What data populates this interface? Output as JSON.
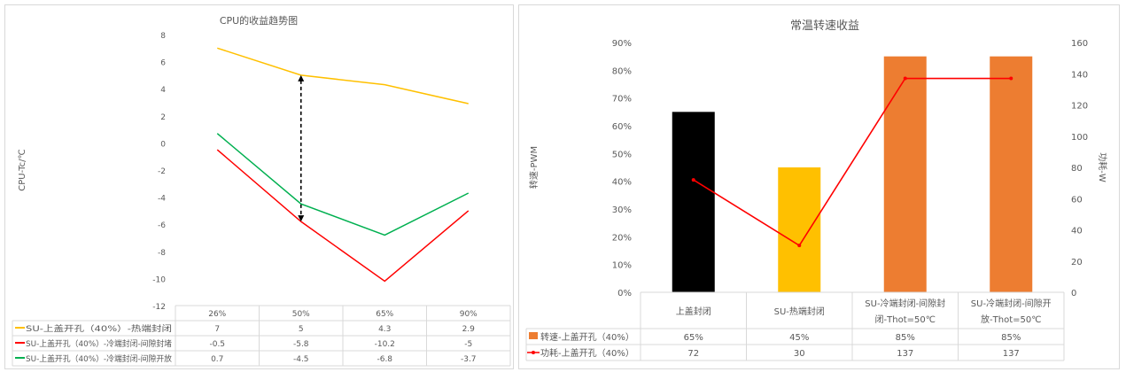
{
  "chart_data": [
    {
      "type": "line",
      "title": "CPU的收益趋势图",
      "ylabel": "CPU-Tc/℃",
      "xlabel": "",
      "ylim": [
        -12,
        8
      ],
      "yticks": [
        8,
        6,
        4,
        2,
        0,
        -2,
        -4,
        -6,
        -8,
        -10,
        -12
      ],
      "grid": false,
      "legend": "bottom-table",
      "categories": [
        "26%",
        "50%",
        "65%",
        "90%"
      ],
      "series": [
        {
          "name": "SU-上盖开孔（40%）-热端封闭",
          "color": "#FFC000",
          "values": [
            7,
            5,
            4.3,
            2.9
          ],
          "labels": [
            "7",
            "5",
            "4.3",
            "2.9"
          ]
        },
        {
          "name": "SU-上盖开孔（40%）-冷端封闭-间隙封堵",
          "color": "#FF0000",
          "values": [
            -0.5,
            -5.8,
            -10.2,
            -5
          ],
          "labels": [
            "-0.5",
            "-5.8",
            "-10.2",
            "-5"
          ]
        },
        {
          "name": "SU-上盖开孔（40%）-冷端封闭-间隙开放",
          "color": "#00B050",
          "values": [
            0.7,
            -4.5,
            -6.8,
            -3.7
          ],
          "labels": [
            "0.7",
            "-4.5",
            "-6.8",
            "-3.7"
          ]
        }
      ],
      "annotations": [
        {
          "type": "double-arrow-dashed",
          "category": "50%",
          "from": 5,
          "to": -5.8
        }
      ]
    },
    {
      "type": "bar",
      "title": "常温转速收益",
      "ylabel": "转速-PWM",
      "y2label": "功耗-W",
      "ylim": [
        0,
        90
      ],
      "y2lim": [
        0,
        160
      ],
      "yticks": [
        "90%",
        "80%",
        "70%",
        "60%",
        "50%",
        "40%",
        "30%",
        "20%",
        "10%",
        "0%"
      ],
      "y2ticks": [
        "160",
        "140",
        "120",
        "100",
        "80",
        "60",
        "40",
        "20",
        "0"
      ],
      "legend": "bottom-table",
      "categories": [
        "上盖封闭",
        "SU-热端封闭",
        "SU-冷端封闭-间隙封闭-Thot=50℃",
        "SU-冷端封闭-间隙开放-Thot=50℃"
      ],
      "category_lines": [
        [
          "上盖封闭"
        ],
        [
          "SU-热端封闭"
        ],
        [
          "SU-冷端封闭-间隙封",
          "闭-Thot=50℃"
        ],
        [
          "SU-冷端封闭-间隙开",
          "放-Thot=50℃"
        ]
      ],
      "bar_colors": [
        "#000000",
        "#FFC000",
        "#ED7D31",
        "#ED7D31"
      ],
      "series": [
        {
          "name": "转速-上盖开孔（40%）",
          "kind": "bar",
          "color": "#ED7D31",
          "values": [
            65,
            45,
            85,
            85
          ],
          "labels": [
            "65%",
            "45%",
            "85%",
            "85%"
          ]
        },
        {
          "name": "功耗-上盖开孔（40%）",
          "kind": "line",
          "axis": "right",
          "color": "#FF0000",
          "values": [
            72,
            30,
            137,
            137
          ],
          "labels": [
            "72",
            "30",
            "137",
            "137"
          ]
        }
      ]
    }
  ]
}
